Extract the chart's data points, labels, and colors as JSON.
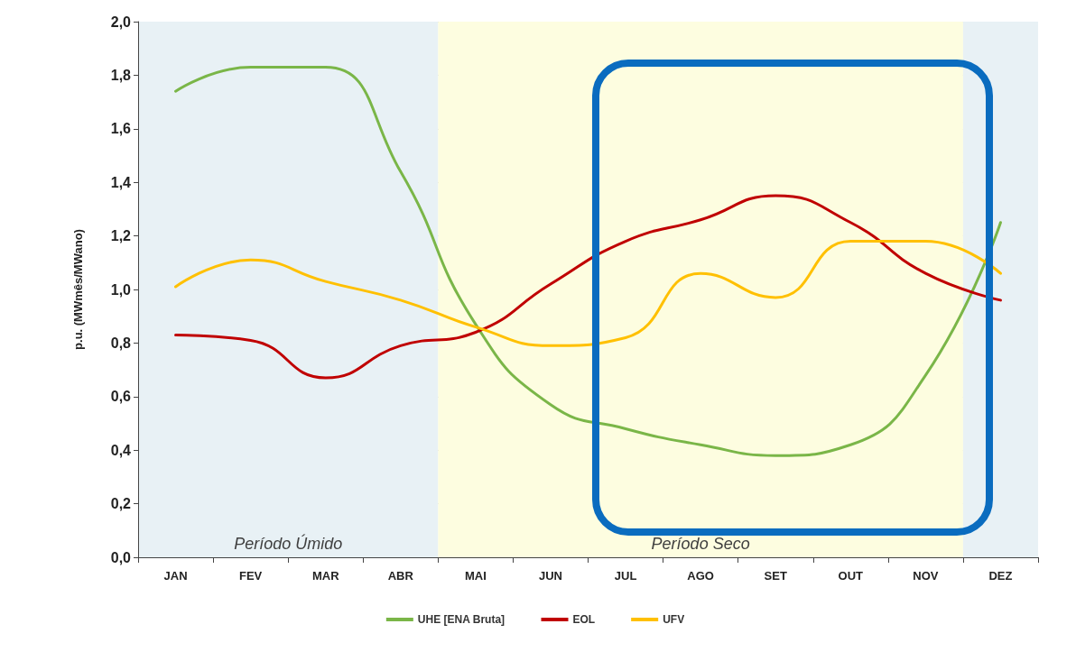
{
  "chart_data": {
    "type": "line",
    "ylabel": "p.u. (MWmês/MWano)",
    "categories": [
      "JAN",
      "FEV",
      "MAR",
      "ABR",
      "MAI",
      "JUN",
      "JUL",
      "AGO",
      "SET",
      "OUT",
      "NOV",
      "DEZ"
    ],
    "series": [
      {
        "name": "UHE [ENA Bruta]",
        "color": "#7ab648",
        "values": [
          1.74,
          1.83,
          1.83,
          1.44,
          0.87,
          0.57,
          0.48,
          0.42,
          0.38,
          0.42,
          0.68,
          1.25
        ]
      },
      {
        "name": "EOL",
        "color": "#c00000",
        "values": [
          0.83,
          0.81,
          0.67,
          0.79,
          0.84,
          1.02,
          1.18,
          1.26,
          1.35,
          1.25,
          1.06,
          0.96
        ]
      },
      {
        "name": "UFV",
        "color": "#ffc000",
        "values": [
          1.01,
          1.11,
          1.03,
          0.96,
          0.86,
          0.79,
          0.82,
          1.06,
          0.97,
          1.18,
          1.18,
          1.06
        ]
      }
    ],
    "ylim": [
      0,
      2
    ],
    "yticks": [
      {
        "value": 0,
        "label": "0,0"
      },
      {
        "value": 0.2,
        "label": "0,2"
      },
      {
        "value": 0.4,
        "label": "0,4"
      },
      {
        "value": 0.6,
        "label": "0,6"
      },
      {
        "value": 0.8,
        "label": "0,8"
      },
      {
        "value": 1,
        "label": "1,0"
      },
      {
        "value": 1.2,
        "label": "1,2"
      },
      {
        "value": 1.4,
        "label": "1,4"
      },
      {
        "value": 1.6,
        "label": "1,6"
      },
      {
        "value": 1.8,
        "label": "1,8"
      },
      {
        "value": 2,
        "label": "2,0"
      }
    ],
    "bands": [
      {
        "axis": "x",
        "from": "JAN",
        "to": "ABR",
        "label": "Período Úmido",
        "color": "#e8f1f5"
      },
      {
        "axis": "x",
        "from": "MAI",
        "to": "NOV",
        "label": "Período Seco",
        "color": "#fdfde0"
      },
      {
        "axis": "x",
        "from": "DEZ",
        "to": "DEZ",
        "label": null,
        "color": "#e8f1f5"
      }
    ],
    "grid": "y",
    "legend": "bottom",
    "marker": "none",
    "line_style": "solid"
  }
}
